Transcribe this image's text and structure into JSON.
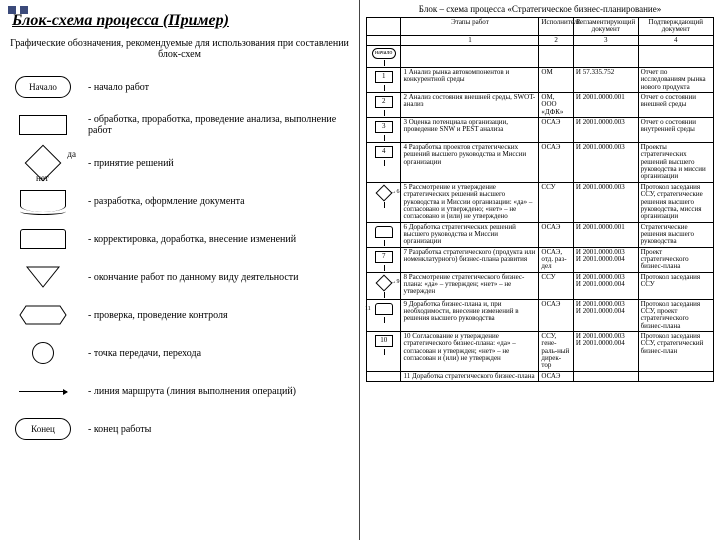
{
  "left": {
    "title": "Блок-схема процесса (Пример)",
    "subtitle": "Графические обозначения, рекомендуемые для использования при составлении блок-схем",
    "legend": [
      {
        "shape": "oval",
        "label": "Начало",
        "text": "- начало работ"
      },
      {
        "shape": "rect",
        "label": "",
        "text": "- обработка, проработка, проведение анализа, выполнение работ"
      },
      {
        "shape": "diamond",
        "label_yes": "да",
        "label_no": "нет",
        "text": "- принятие решений"
      },
      {
        "shape": "doc",
        "label": "",
        "text": "- разработка, оформление документа"
      },
      {
        "shape": "corr",
        "label": "",
        "text": "- корректировка, доработка, внесение изменений"
      },
      {
        "shape": "tri",
        "label": "",
        "text": "- окончание работ по данному виду деятельности"
      },
      {
        "shape": "hex",
        "label": "",
        "text": "- проверка, проведение контроля"
      },
      {
        "shape": "circle",
        "label": "",
        "text": "- точка передачи, перехода"
      },
      {
        "shape": "line",
        "label": "",
        "text": "- линия маршрута (линия выполнения операций)"
      },
      {
        "shape": "oval",
        "label": "Конец",
        "text": "- конец работы"
      }
    ]
  },
  "right": {
    "super_title": "Блок – схема процесса «Стратегическое бизнес-планирование»",
    "headers": [
      "",
      "Этапы работ",
      "Исполнитель",
      "Регламентирующий документ",
      "Подтверждающий документ"
    ],
    "numbers": [
      "",
      "1",
      "2",
      "3",
      "4"
    ],
    "flow_start": "начало",
    "rows": [
      {
        "n": "1",
        "stage": "1 Анализ рынка автокомпонентов и конкурентной среды",
        "exec": "ОМ",
        "reg": "И 57.335.752",
        "conf": "Отчет по исследованиям рынка нового продукта"
      },
      {
        "n": "2",
        "stage": "2 Анализ состояния внешней среды, SWOT-анализ",
        "exec": "ОМ, ООО «ДФК»",
        "reg": "И 2001.0000.001",
        "conf": "Отчет о состоянии внешней среды"
      },
      {
        "n": "3",
        "stage": "3 Оценка потенциала организации, проведение SNW и PEST анализа",
        "exec": "ОСАЭ",
        "reg": "И 2001.0000.003",
        "conf": "Отчет о состоянии внутренней среды"
      },
      {
        "n": "4",
        "stage": "4 Разработка проектов стратегических решений высшего руководства и Миссии организации",
        "exec": "ОСАЭ",
        "reg": "И 2001.0000.003",
        "conf": "Проекты стратегических решений высшего руководства и миссии организации"
      },
      {
        "n": "5",
        "dia": true,
        "side": "6",
        "stage": "5 Рассмотрение и утверждение стратегических решений высшего руководства и Миссии организации: «да» – согласовано и утверждено; «нет» – не согласовано и (или) не утверждено",
        "exec": "ССУ",
        "reg": "И 2001.0000.003",
        "conf": "Протокол заседания ССУ, стратегические решения высшего руководства, миссия организации"
      },
      {
        "n": "",
        "corr": true,
        "stage": "6 Доработка стратегических решений высшего руководства и Миссии организации",
        "exec": "ОСАЭ",
        "reg": "И 2001.0000.001",
        "conf": "Стратегические решения высшего руководства"
      },
      {
        "n": "7",
        "stage": "7 Разработка стратегического (продукта или номенклатурного) бизнес-плана развития",
        "exec": "ОСАЭ, отд. раз-дел",
        "reg": "И 2001.0000.003\nИ 2001.0000.004",
        "conf": "Проект стратегического бизнес-плана"
      },
      {
        "n": "8",
        "dia": true,
        "side": "9",
        "stage": "8 Рассмотрение стратегического бизнес-плана: «да» – утвержден; «нет» – не утвержден",
        "exec": "ССУ",
        "reg": "И 2001.0000.003\nИ 2001.0000.004",
        "conf": "Протокол заседания ССУ"
      },
      {
        "n": "",
        "corr": true,
        "sideL": "11",
        "stage": "9 Доработка бизнес-плана и, при необходимости, внесение изменений в решения высшего руководства",
        "exec": "ОСАЭ",
        "reg": "И 2001.0000.003\nИ 2001.0000.004",
        "conf": "Протокол заседания ССУ, проект стратегического бизнес-плана"
      },
      {
        "n": "10",
        "stage": "10 Согласование и утверждение стратегического бизнес-плана: «да» – согласован и утвержден; «нет» – не согласован и (или) не утвержден",
        "exec": "ССУ, гене-раль-ный дирек-тор",
        "reg": "И 2001.0000.003\nИ 2001.0000.004",
        "conf": "Протокол заседания ССУ, стратегический бизнес-план"
      },
      {
        "n": "",
        "stage": "11 Доработка стратегического бизнес-плана",
        "exec": "ОСАЭ",
        "reg": "",
        "conf": ""
      }
    ]
  },
  "colors": {
    "accent": "#3b4a7a",
    "line": "#000000",
    "bg": "#ffffff"
  }
}
